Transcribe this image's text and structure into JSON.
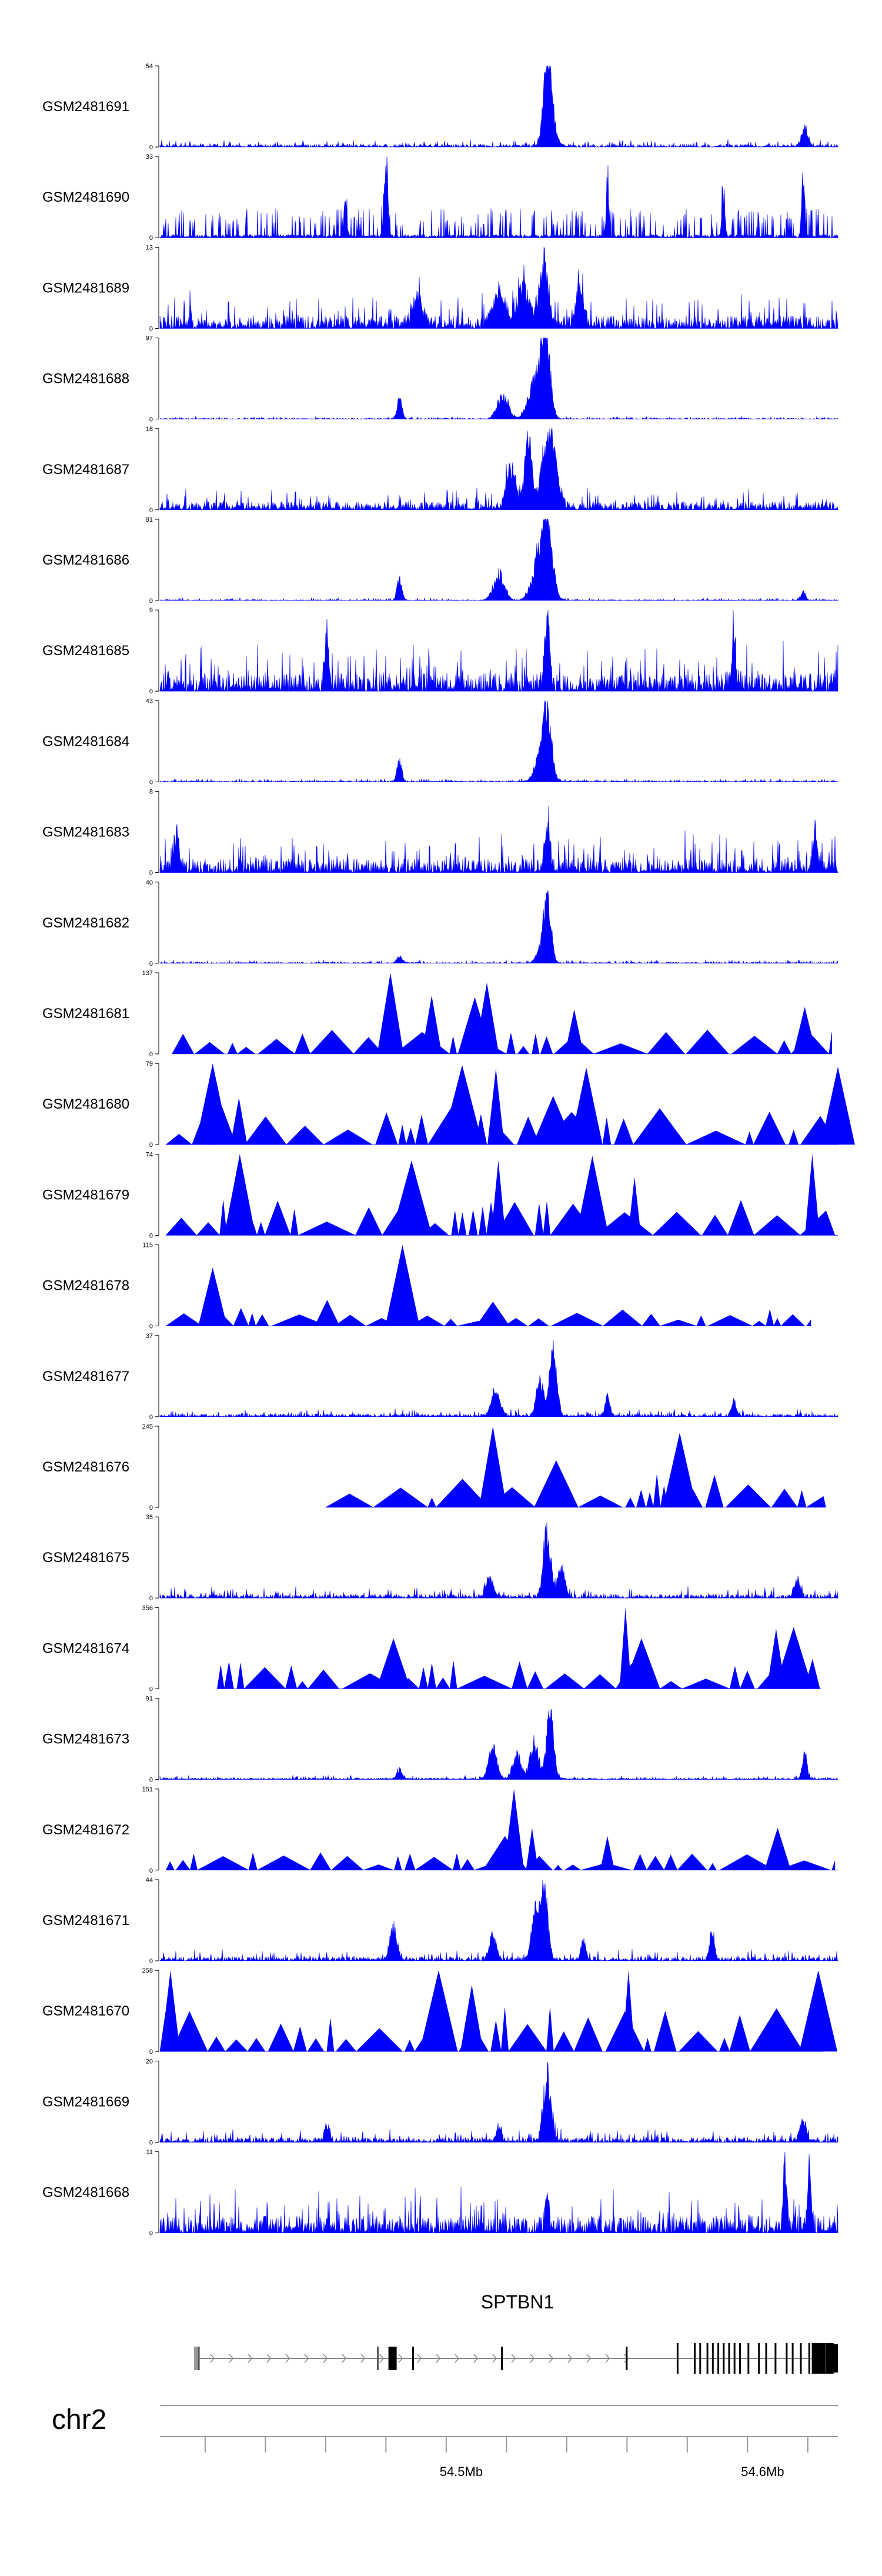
{
  "chart_data": {
    "type": "area",
    "title": "",
    "xlabel": "",
    "ylabel": "",
    "chromosome": "chr2",
    "gene": {
      "name": "SPTBN1",
      "exons_mb": [
        54.4129,
        54.4723,
        54.4768,
        54.4772,
        54.4776,
        54.484,
        54.5135,
        54.5549,
        54.5718,
        54.5775,
        54.5793,
        54.5817,
        54.5835,
        54.5853,
        54.5871,
        54.5889,
        54.5907,
        54.5925,
        54.5953,
        54.5988,
        54.6012,
        54.6043,
        54.608,
        54.61,
        54.6127,
        54.6155,
        54.6177,
        54.619,
        54.6205,
        54.6222
      ]
    },
    "x_axis": {
      "range_mb": [
        54.4,
        54.625
      ],
      "tick_labels": [
        {
          "mb": 54.5,
          "label": "54.5Mb"
        },
        {
          "mb": 54.6,
          "label": "54.6Mb"
        }
      ]
    },
    "tracks": [
      {
        "name": "GSM2481691",
        "ymax": "54",
        "ymin": "0",
        "style": "dense",
        "noise": 0.07,
        "peaks": [
          [
            54.5286,
            1.0,
            0.0012
          ],
          [
            54.5293,
            0.45,
            0.0018
          ],
          [
            54.614,
            0.28,
            0.001
          ]
        ]
      },
      {
        "name": "GSM2481690",
        "ymax": "33",
        "ymin": "0",
        "style": "spiky",
        "base": 0.3,
        "peaks": [
          [
            54.475,
            1.0,
            0.0006
          ],
          [
            54.6135,
            0.9,
            0.0005
          ],
          [
            54.5486,
            0.65,
            0.0005
          ],
          [
            54.4615,
            0.5,
            0.0005
          ],
          [
            54.587,
            0.62,
            0.0005
          ]
        ]
      },
      {
        "name": "GSM2481689",
        "ymax": "13",
        "ymin": "0",
        "style": "dense",
        "noise": 0.32,
        "peaks": [
          [
            54.5275,
            0.95,
            0.0015
          ],
          [
            54.5205,
            0.6,
            0.002
          ],
          [
            54.5395,
            0.55,
            0.0012
          ],
          [
            54.5125,
            0.48,
            0.002
          ],
          [
            54.4855,
            0.42,
            0.0015
          ]
        ]
      },
      {
        "name": "GSM2481688",
        "ymax": "97",
        "ymin": "0",
        "style": "dense",
        "noise": 0.025,
        "peaks": [
          [
            54.528,
            1.0,
            0.0015
          ],
          [
            54.5251,
            0.65,
            0.0024
          ],
          [
            54.5138,
            0.35,
            0.0018
          ],
          [
            54.4795,
            0.3,
            0.0008
          ]
        ]
      },
      {
        "name": "GSM2481687",
        "ymax": "18",
        "ymin": "0",
        "style": "dense",
        "noise": 0.2,
        "peaks": [
          [
            54.5222,
            1.0,
            0.0012
          ],
          [
            54.5285,
            0.8,
            0.002
          ],
          [
            54.5165,
            0.6,
            0.0015
          ],
          [
            54.5305,
            0.52,
            0.0018
          ]
        ]
      },
      {
        "name": "GSM2481686",
        "ymax": "81",
        "ymin": "0",
        "style": "dense",
        "noise": 0.025,
        "peaks": [
          [
            54.5285,
            1.0,
            0.0018
          ],
          [
            54.5258,
            0.6,
            0.0022
          ],
          [
            54.5125,
            0.4,
            0.0018
          ],
          [
            54.4795,
            0.3,
            0.0008
          ],
          [
            54.6135,
            0.12,
            0.0008
          ]
        ]
      },
      {
        "name": "GSM2481685",
        "ymax": "9",
        "ymin": "0",
        "style": "dense",
        "noise": 0.45,
        "peaks": [
          [
            54.5285,
            1.0,
            0.0008
          ],
          [
            54.4555,
            0.78,
            0.0006
          ],
          [
            54.5905,
            0.75,
            0.0006
          ]
        ]
      },
      {
        "name": "GSM2481684",
        "ymax": "43",
        "ymin": "0",
        "style": "dense",
        "noise": 0.03,
        "peaks": [
          [
            54.5285,
            1.0,
            0.0014
          ],
          [
            54.5262,
            0.35,
            0.0018
          ],
          [
            54.4795,
            0.3,
            0.0008
          ]
        ]
      },
      {
        "name": "GSM2481683",
        "ymax": "8",
        "ymin": "0",
        "style": "dense",
        "noise": 0.35,
        "peaks": [
          [
            54.5286,
            0.7,
            0.0008
          ],
          [
            54.4055,
            0.55,
            0.0008
          ],
          [
            54.6175,
            0.5,
            0.0008
          ]
        ]
      },
      {
        "name": "GSM2481682",
        "ymax": "40",
        "ymin": "0",
        "style": "dense",
        "noise": 0.03,
        "peaks": [
          [
            54.5286,
            1.0,
            0.0012
          ],
          [
            54.5265,
            0.2,
            0.0015
          ],
          [
            54.4795,
            0.1,
            0.0008
          ]
        ]
      },
      {
        "name": "GSM2481681",
        "ymax": "137",
        "ymin": "0",
        "style": "tri",
        "xmin": 54.404,
        "xmax": 54.623,
        "wide": 0.3,
        "spikes": [
          [
            54.4765,
            1.0
          ],
          [
            54.5085,
            0.88
          ],
          [
            54.5045,
            0.7
          ],
          [
            54.614,
            0.58
          ],
          [
            54.5375,
            0.55
          ],
          [
            54.4902,
            0.72
          ]
        ]
      },
      {
        "name": "GSM2481680",
        "ymax": "79",
        "ymin": "0",
        "style": "tri",
        "xmin": 54.402,
        "xmax": 54.625,
        "wide": 0.48,
        "spikes": [
          [
            54.4175,
            1.0
          ],
          [
            54.4262,
            0.58
          ],
          [
            54.5003,
            0.98
          ],
          [
            54.5115,
            0.94
          ],
          [
            54.5415,
            0.95
          ],
          [
            54.5305,
            0.6
          ],
          [
            54.625,
            0.96
          ]
        ]
      },
      {
        "name": "GSM2481679",
        "ymax": "74",
        "ymin": "0",
        "style": "tri",
        "xmin": 54.402,
        "xmax": 54.624,
        "wide": 0.44,
        "spikes": [
          [
            54.4265,
            1.0
          ],
          [
            54.4835,
            0.92
          ],
          [
            54.5435,
            0.98
          ],
          [
            54.6165,
            1.0
          ],
          [
            54.5123,
            0.92
          ],
          [
            54.5575,
            0.72
          ]
        ]
      },
      {
        "name": "GSM2481678",
        "ymax": "115",
        "ymin": "0",
        "style": "tri",
        "xmin": 54.402,
        "xmax": 54.616,
        "wide": 0.22,
        "spikes": [
          [
            54.4175,
            0.72
          ],
          [
            54.4805,
            1.0
          ],
          [
            54.4555,
            0.32
          ],
          [
            54.5105,
            0.3
          ]
        ]
      },
      {
        "name": "GSM2481677",
        "ymax": "37",
        "ymin": "0",
        "style": "dense",
        "noise": 0.07,
        "peaks": [
          [
            54.5305,
            0.95,
            0.0012
          ],
          [
            54.5262,
            0.55,
            0.0012
          ],
          [
            54.5115,
            0.42,
            0.0014
          ],
          [
            54.5485,
            0.3,
            0.0008
          ],
          [
            54.5905,
            0.25,
            0.0008
          ]
        ]
      },
      {
        "name": "GSM2481676",
        "ymax": "245",
        "ymin": "0",
        "style": "tri",
        "xmin": 54.455,
        "xmax": 54.621,
        "wide": 0.45,
        "spikes": [
          [
            54.5105,
            1.0
          ],
          [
            54.5725,
            0.92
          ],
          [
            54.5315,
            0.58
          ]
        ]
      },
      {
        "name": "GSM2481675",
        "ymax": "35",
        "ymin": "0",
        "style": "dense",
        "noise": 0.1,
        "peaks": [
          [
            54.5285,
            1.0,
            0.0012
          ],
          [
            54.5332,
            0.42,
            0.0012
          ],
          [
            54.5095,
            0.3,
            0.0012
          ],
          [
            54.6115,
            0.25,
            0.001
          ]
        ]
      },
      {
        "name": "GSM2481674",
        "ymax": "356",
        "ymin": "0",
        "style": "tri",
        "xmin": 54.419,
        "xmax": 54.619,
        "wide": 0.36,
        "spikes": [
          [
            54.5545,
            1.0
          ],
          [
            54.6045,
            0.74
          ],
          [
            54.6103,
            0.76
          ],
          [
            54.4775,
            0.62
          ],
          [
            54.5598,
            0.62
          ]
        ]
      },
      {
        "name": "GSM2481673",
        "ymax": "91",
        "ymin": "0",
        "style": "dense",
        "noise": 0.04,
        "peaks": [
          [
            54.5295,
            1.0,
            0.0012
          ],
          [
            54.5242,
            0.55,
            0.0014
          ],
          [
            54.5105,
            0.45,
            0.0014
          ],
          [
            54.5185,
            0.35,
            0.0014
          ],
          [
            54.614,
            0.35,
            0.0008
          ],
          [
            54.4795,
            0.15,
            0.0008
          ]
        ]
      },
      {
        "name": "GSM2481672",
        "ymax": "151",
        "ymin": "0",
        "style": "tri",
        "xmin": 54.402,
        "xmax": 54.624,
        "wide": 0.22,
        "spikes": [
          [
            54.5175,
            1.0
          ],
          [
            54.5235,
            0.52
          ],
          [
            54.605,
            0.52
          ],
          [
            54.5485,
            0.42
          ],
          [
            54.5145,
            0.42
          ]
        ]
      },
      {
        "name": "GSM2481671",
        "ymax": "44",
        "ymin": "0",
        "style": "dense",
        "noise": 0.1,
        "peaks": [
          [
            54.5275,
            1.0,
            0.0012
          ],
          [
            54.5245,
            0.7,
            0.0012
          ],
          [
            54.4775,
            0.45,
            0.0012
          ],
          [
            54.5105,
            0.35,
            0.0012
          ],
          [
            54.5832,
            0.45,
            0.0008
          ],
          [
            54.5405,
            0.3,
            0.0008
          ]
        ]
      },
      {
        "name": "GSM2481670",
        "ymax": "258",
        "ymin": "0",
        "style": "tri",
        "xmin": 54.4,
        "xmax": 54.62,
        "wide": 0.55,
        "spikes": [
          [
            54.4035,
            1.0
          ],
          [
            54.4925,
            1.0
          ],
          [
            54.6185,
            1.0
          ],
          [
            54.5035,
            0.82
          ],
          [
            54.5555,
            1.0
          ]
        ]
      },
      {
        "name": "GSM2481669",
        "ymax": "20",
        "ymin": "0",
        "style": "dense",
        "noise": 0.12,
        "peaks": [
          [
            54.5285,
            1.0,
            0.0012
          ],
          [
            54.6135,
            0.35,
            0.001
          ],
          [
            54.4555,
            0.25,
            0.0008
          ],
          [
            54.5125,
            0.22,
            0.0008
          ]
        ]
      },
      {
        "name": "GSM2481668",
        "ymax": "11",
        "ymin": "0",
        "style": "dense",
        "noise": 0.42,
        "peaks": [
          [
            54.6075,
            0.95,
            0.0006
          ],
          [
            54.6155,
            0.85,
            0.0006
          ],
          [
            54.5285,
            0.6,
            0.0006
          ]
        ]
      }
    ]
  }
}
